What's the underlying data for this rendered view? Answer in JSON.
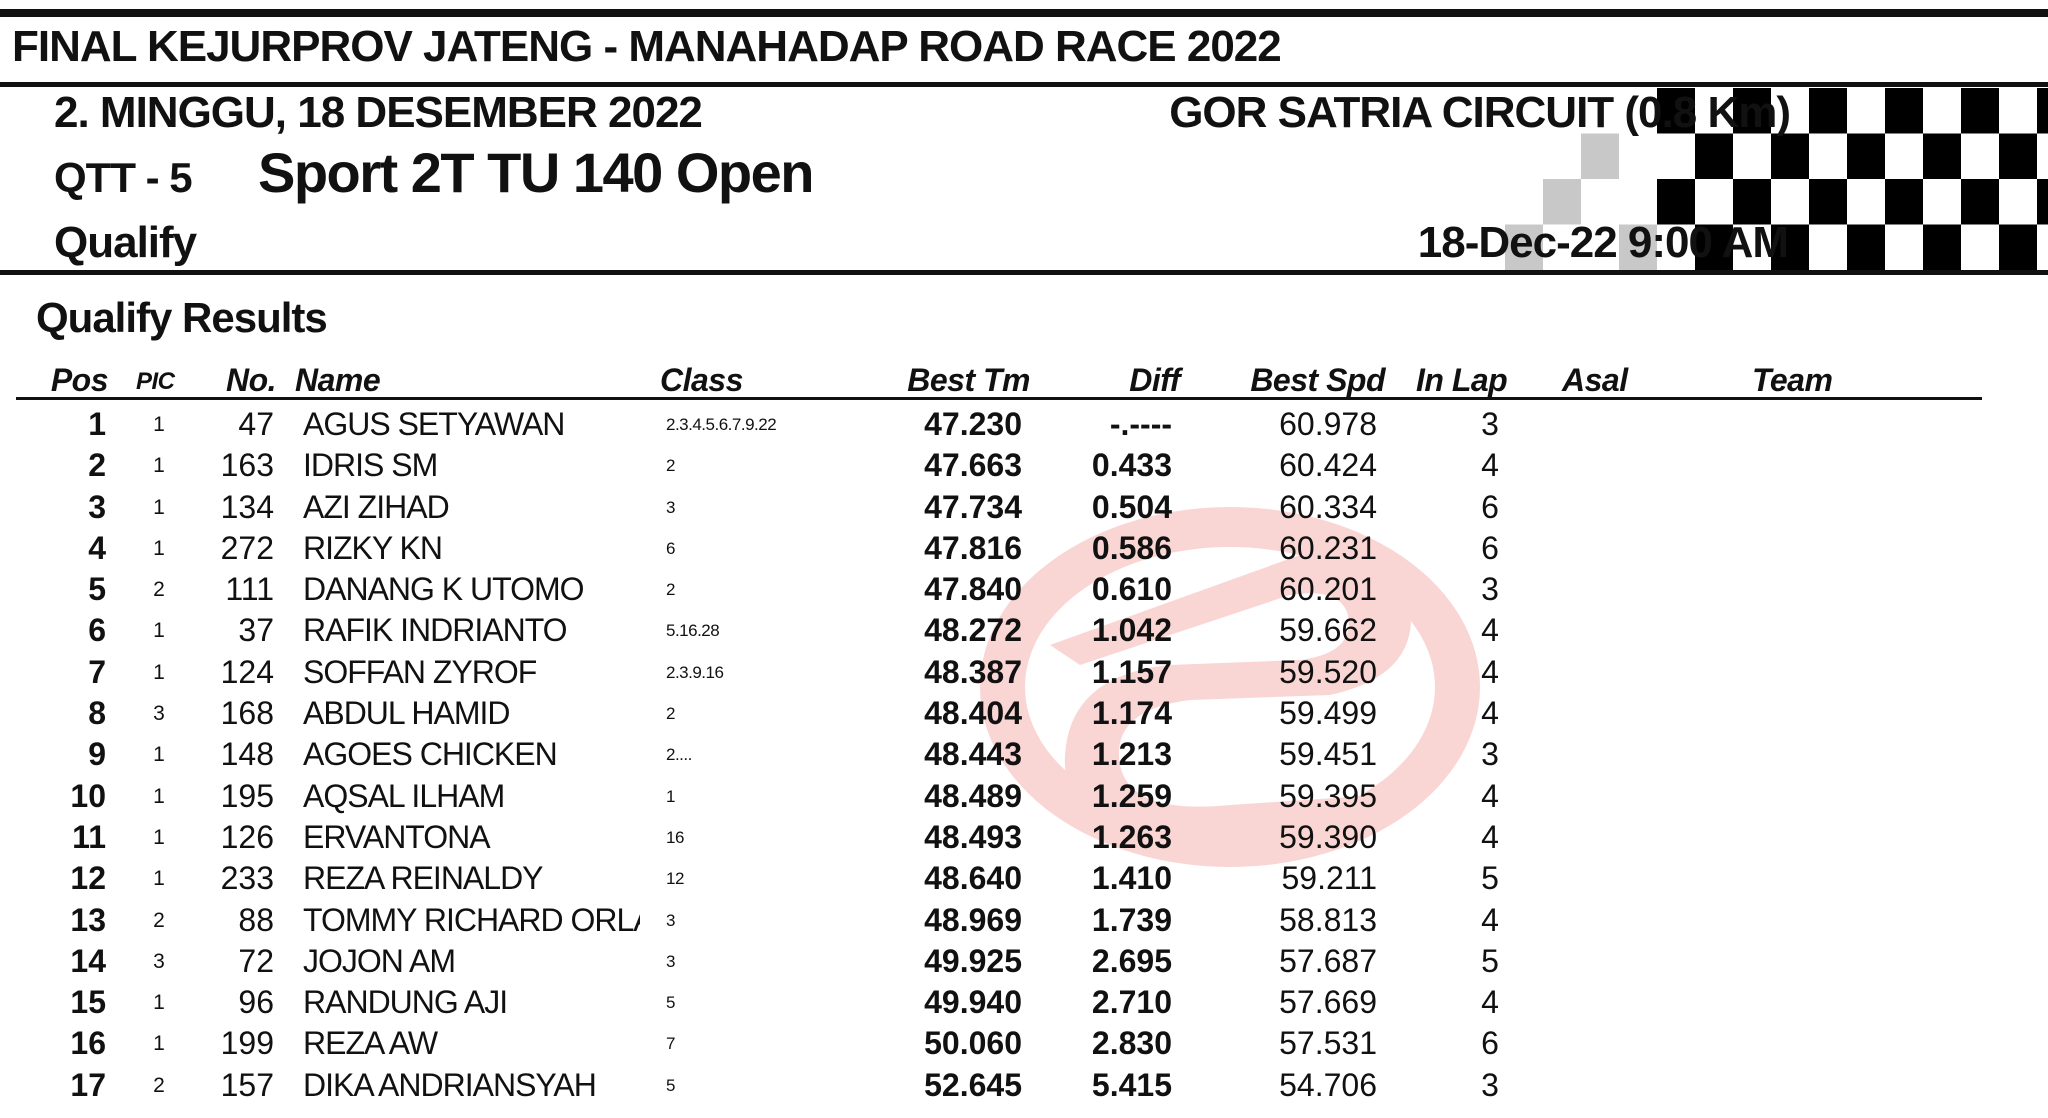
{
  "header": {
    "event_title": "FINAL KEJURPROV JATENG - MANAHADAP ROAD RACE 2022",
    "day_line": "2. MINGGU, 18 DESEMBER 2022",
    "circuit": "GOR SATRIA CIRCUIT (0.8 Km)",
    "session_code": "QTT - 5",
    "class_name": "Sport 2T TU 140 Open",
    "session_type": "Qualify",
    "session_date": "18-Dec-22  9:00 AM"
  },
  "results_heading": "Qualify Results",
  "columns": {
    "pos": "Pos",
    "pic": "PIC",
    "no": "No.",
    "name": "Name",
    "class": "Class",
    "best_tm": "Best Tm",
    "diff": "Diff",
    "best_spd": "Best Spd",
    "in_lap": "In Lap",
    "asal": "Asal",
    "team": "Team"
  },
  "rows": [
    {
      "pos": "1",
      "pic": "1",
      "no": "47",
      "name": "AGUS SETYAWAN",
      "class": "2.3.4.5.6.7.9.22",
      "best": "47.230",
      "diff": "-.----",
      "spd": "60.978",
      "lap": "3"
    },
    {
      "pos": "2",
      "pic": "1",
      "no": "163",
      "name": "IDRIS SM",
      "class": "2",
      "best": "47.663",
      "diff": "0.433",
      "spd": "60.424",
      "lap": "4"
    },
    {
      "pos": "3",
      "pic": "1",
      "no": "134",
      "name": "AZI ZIHAD",
      "class": "3",
      "best": "47.734",
      "diff": "0.504",
      "spd": "60.334",
      "lap": "6"
    },
    {
      "pos": "4",
      "pic": "1",
      "no": "272",
      "name": "RIZKY KN",
      "class": "6",
      "best": "47.816",
      "diff": "0.586",
      "spd": "60.231",
      "lap": "6"
    },
    {
      "pos": "5",
      "pic": "2",
      "no": "111",
      "name": "DANANG K UTOMO",
      "class": "2",
      "best": "47.840",
      "diff": "0.610",
      "spd": "60.201",
      "lap": "3"
    },
    {
      "pos": "6",
      "pic": "1",
      "no": "37",
      "name": "RAFIK INDRIANTO",
      "class": "5.16.28",
      "best": "48.272",
      "diff": "1.042",
      "spd": "59.662",
      "lap": "4"
    },
    {
      "pos": "7",
      "pic": "1",
      "no": "124",
      "name": "SOFFAN ZYROF",
      "class": "2.3.9.16",
      "best": "48.387",
      "diff": "1.157",
      "spd": "59.520",
      "lap": "4"
    },
    {
      "pos": "8",
      "pic": "3",
      "no": "168",
      "name": "ABDUL HAMID",
      "class": "2",
      "best": "48.404",
      "diff": "1.174",
      "spd": "59.499",
      "lap": "4"
    },
    {
      "pos": "9",
      "pic": "1",
      "no": "148",
      "name": "AGOES CHICKEN",
      "class": "2....",
      "best": "48.443",
      "diff": "1.213",
      "spd": "59.451",
      "lap": "3"
    },
    {
      "pos": "10",
      "pic": "1",
      "no": "195",
      "name": "AQSAL ILHAM",
      "class": "1",
      "best": "48.489",
      "diff": "1.259",
      "spd": "59.395",
      "lap": "4"
    },
    {
      "pos": "11",
      "pic": "1",
      "no": "126",
      "name": "ERVANTONA",
      "class": "16",
      "best": "48.493",
      "diff": "1.263",
      "spd": "59.390",
      "lap": "4"
    },
    {
      "pos": "12",
      "pic": "1",
      "no": "233",
      "name": "REZA REINALDY",
      "class": "12",
      "best": "48.640",
      "diff": "1.410",
      "spd": "59.211",
      "lap": "5"
    },
    {
      "pos": "13",
      "pic": "2",
      "no": "88",
      "name": "TOMMY RICHARD ORLA",
      "class": "3",
      "best": "48.969",
      "diff": "1.739",
      "spd": "58.813",
      "lap": "4"
    },
    {
      "pos": "14",
      "pic": "3",
      "no": "72",
      "name": "JOJON AM",
      "class": "3",
      "best": "49.925",
      "diff": "2.695",
      "spd": "57.687",
      "lap": "5"
    },
    {
      "pos": "15",
      "pic": "1",
      "no": "96",
      "name": "RANDUNG AJI",
      "class": "5",
      "best": "49.940",
      "diff": "2.710",
      "spd": "57.669",
      "lap": "4"
    },
    {
      "pos": "16",
      "pic": "1",
      "no": "199",
      "name": "REZA AW",
      "class": "7",
      "best": "50.060",
      "diff": "2.830",
      "spd": "57.531",
      "lap": "6"
    },
    {
      "pos": "17",
      "pic": "2",
      "no": "157",
      "name": "DIKA ANDRIANSYAH",
      "class": "5",
      "best": "52.645",
      "diff": "5.415",
      "spd": "54.706",
      "lap": "3"
    }
  ],
  "colors": {
    "text": "#111111",
    "watermark": "#e8463f",
    "flag_dark": "#000000",
    "flag_light": "#c8c8c8"
  },
  "icons": {
    "flag": "checkered-flag-icon",
    "watermark": "timing-logo-watermark-icon"
  }
}
